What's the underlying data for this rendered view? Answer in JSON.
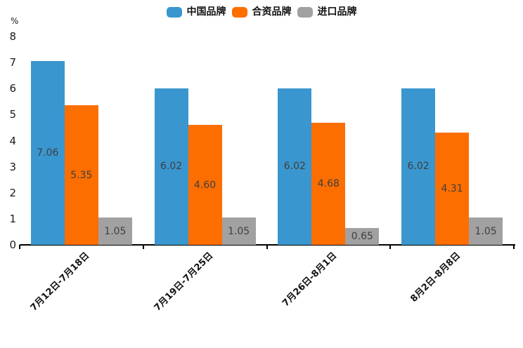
{
  "chart_data": {
    "type": "bar",
    "title": "",
    "ylabel": "%",
    "xlabel": "",
    "ylim": [
      0,
      8
    ],
    "ytick_labels": [
      "0",
      "1",
      "2",
      "3",
      "4",
      "5",
      "6",
      "7",
      "8"
    ],
    "grid": false,
    "legend_position": "top-center",
    "categories": [
      "7月12日-7月18日",
      "7月19日-7月25日",
      "7月26日-8月1日",
      "8月2日-8月8日"
    ],
    "series": [
      {
        "name": "中国品牌",
        "color": "#3A96CE",
        "values": [
          7.06,
          6.02,
          6.02,
          6.02
        ],
        "labels": [
          "7.06",
          "6.02",
          "6.02",
          "6.02"
        ]
      },
      {
        "name": "合资品牌",
        "color": "#FC6E00",
        "values": [
          5.35,
          4.6,
          4.68,
          4.31
        ],
        "labels": [
          "5.35",
          "4.60",
          "4.68",
          "4.31"
        ]
      },
      {
        "name": "进口品牌",
        "color": "#A1A1A1",
        "values": [
          1.05,
          1.05,
          0.65,
          1.05
        ],
        "labels": [
          "1.05",
          "1.05",
          "0.65",
          "1.05"
        ]
      }
    ],
    "colors": {
      "axis": "#000000",
      "tick_text": "#1a1a1a",
      "bar_label": "#3f3f3f"
    }
  }
}
